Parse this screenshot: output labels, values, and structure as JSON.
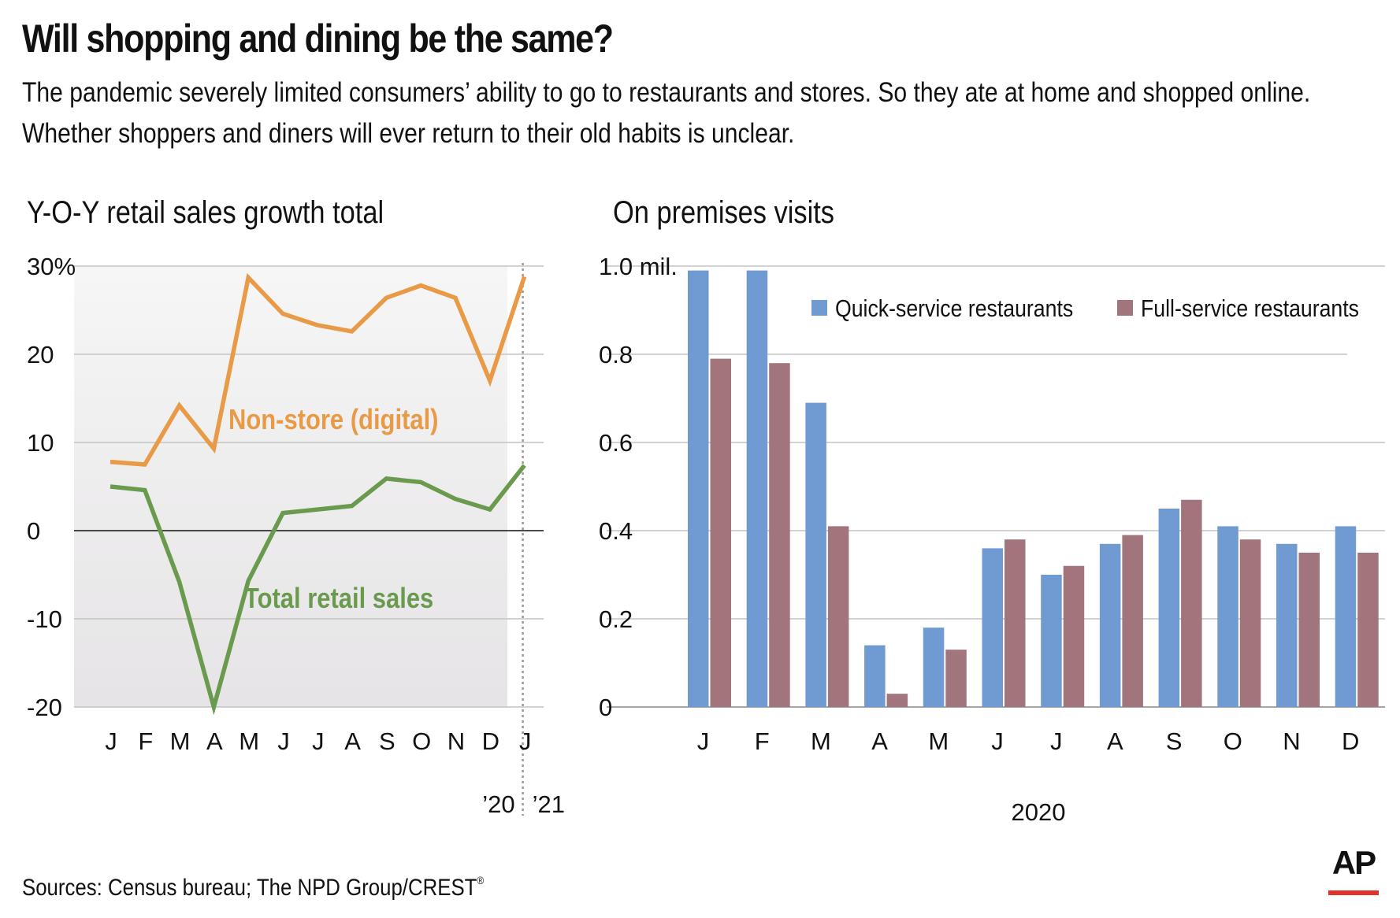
{
  "headline": "Will shopping and dining be the same?",
  "dek_line1": "The pandemic severely limited consumers’ ability to go to restaurants and stores. So they ate at home and shopped online.",
  "dek_line2": "Whether shoppers and diners will ever return to their old habits is unclear.",
  "source": "Sources: Census bureau; The NPD Group/CREST",
  "source_mark": "®",
  "logo": "AP",
  "colors": {
    "orange": "#e89a46",
    "green": "#6a9a4e",
    "blue": "#6f9bd2",
    "mauve": "#a2747c",
    "grid": "#c4c4c4",
    "shading_top": "#f6f6f6",
    "shading_bottom": "#e6e4e6",
    "ap_red": "#e2322c"
  },
  "chart_data": [
    {
      "type": "line",
      "title": "Y-O-Y retail sales growth total",
      "ylim": [
        -20,
        30
      ],
      "yticks": [
        30,
        20,
        10,
        0,
        -10,
        -20
      ],
      "ytick_labels": [
        "30%",
        "20",
        "10",
        "0",
        "-10",
        "-20"
      ],
      "x_labels": [
        "J",
        "F",
        "M",
        "A",
        "M",
        "J",
        "J",
        "A",
        "S",
        "O",
        "N",
        "D",
        "J"
      ],
      "year_labels": [
        "’20",
        "’21"
      ],
      "divider_after_index": 11,
      "shading": "gradient",
      "series": [
        {
          "name": "Non-store (digital)",
          "color": "orange",
          "values": [
            7.8,
            7.5,
            14.2,
            9.3,
            28.7,
            24.6,
            23.3,
            22.6,
            26.4,
            27.8,
            26.4,
            17.0,
            28.8
          ]
        },
        {
          "name": "Total retail sales",
          "color": "green",
          "values": [
            5.0,
            4.6,
            -5.8,
            -20.0,
            -5.7,
            2.0,
            2.4,
            2.8,
            5.9,
            5.5,
            3.6,
            2.4,
            7.4
          ]
        }
      ]
    },
    {
      "type": "bar",
      "title": "On premises visits",
      "ylim": [
        0,
        1.0
      ],
      "yticks": [
        1.0,
        0.8,
        0.6,
        0.4,
        0.2,
        0
      ],
      "ytick_labels": [
        "1.0 mil.",
        "0.8",
        "0.6",
        "0.4",
        "0.2",
        "0"
      ],
      "categories": [
        "J",
        "F",
        "M",
        "A",
        "M",
        "J",
        "J",
        "A",
        "S",
        "O",
        "N",
        "D"
      ],
      "xlabel": "2020",
      "series": [
        {
          "name": "Quick-service restaurants",
          "color": "blue",
          "values": [
            0.99,
            0.99,
            0.69,
            0.14,
            0.18,
            0.36,
            0.3,
            0.37,
            0.45,
            0.41,
            0.37,
            0.41
          ]
        },
        {
          "name": "Full-service restaurants",
          "color": "mauve",
          "values": [
            0.79,
            0.78,
            0.41,
            0.03,
            0.13,
            0.38,
            0.32,
            0.39,
            0.47,
            0.38,
            0.35,
            0.35
          ]
        }
      ]
    }
  ]
}
